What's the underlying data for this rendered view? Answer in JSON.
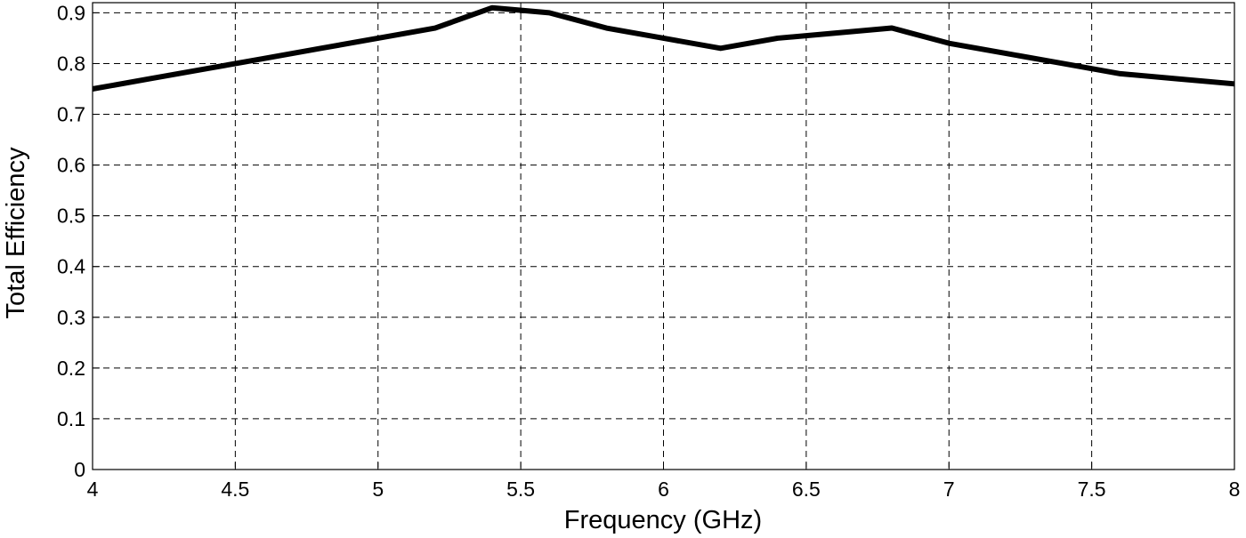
{
  "chart_data": {
    "type": "line",
    "x_label": "Frequency (GHz)",
    "y_label": "Total Efficiency",
    "x": [
      4,
      4.2,
      4.4,
      4.6,
      4.8,
      5,
      5.2,
      5.4,
      5.6,
      5.8,
      6,
      6.2,
      6.4,
      6.6,
      6.8,
      7,
      7.2,
      7.4,
      7.6,
      7.8,
      8
    ],
    "series": [
      {
        "color": "#000000",
        "values": [
          0.75,
          0.77,
          0.79,
          0.81,
          0.83,
          0.85,
          0.87,
          0.91,
          0.9,
          0.87,
          0.85,
          0.83,
          0.85,
          0.86,
          0.87,
          0.84,
          0.82,
          0.8,
          0.78,
          0.77,
          0.76
        ]
      }
    ],
    "xlim": [
      4,
      8
    ],
    "xticks": [
      4,
      4.5,
      5,
      5.5,
      6,
      6.5,
      7,
      7.5,
      8
    ],
    "ylim": [
      0,
      0.92
    ],
    "yticks": [
      0,
      0.1,
      0.2,
      0.3,
      0.4,
      0.5,
      0.6,
      0.7,
      0.8,
      0.9
    ],
    "grid": true
  }
}
